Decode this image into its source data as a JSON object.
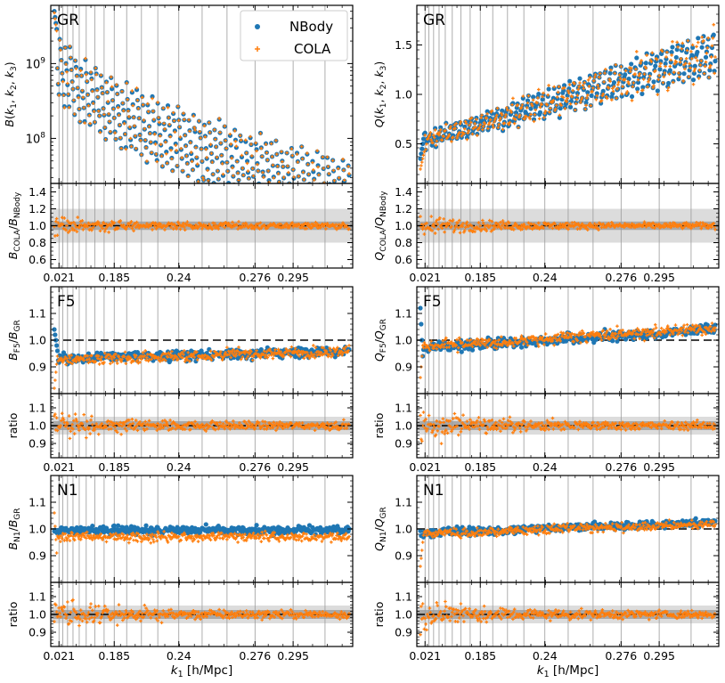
{
  "legend": {
    "nbody": "NBody",
    "cola": "COLA"
  },
  "colors": {
    "nbody": "#1f77b4",
    "cola": "#ff7f0e",
    "band_inner": "#a9a9a9",
    "band_outer": "#dcdcdc",
    "vline": "#9a9a9a"
  },
  "x_ticks": [
    "0.021",
    "0.185",
    "0.24",
    "0.276",
    "0.295"
  ],
  "xlabel_base": "k",
  "xlabel_sub": "1",
  "xlabel_unit": "[h/Mpc]",
  "num_triangles": 380,
  "chart_data": [
    {
      "id": "gr-bispectrum",
      "type": "scatter",
      "col": 0,
      "row": 0,
      "title": "GR",
      "ylabel": "B(k1, k2, k3)",
      "yscale": "log",
      "ylim": [
        25000000,
        6000000000
      ],
      "yticks": [
        "10^8",
        "10^9"
      ],
      "series": [
        {
          "name": "NBody"
        },
        {
          "name": "COLA"
        }
      ],
      "trend": "decreasing from ~6e9 to ~4e7 with sawtooth"
    },
    {
      "id": "gr-bispectrum-ratio",
      "type": "scatter",
      "col": 0,
      "row": 1,
      "ylabel": "B_COLA/B_NBody",
      "ylim": [
        0.5,
        1.5
      ],
      "yticks": [
        "0.6",
        "0.8",
        "1.0",
        "1.2",
        "1.4"
      ],
      "bands": [
        0.05,
        0.2
      ]
    },
    {
      "id": "gr-reduced",
      "type": "scatter",
      "col": 1,
      "row": 0,
      "title": "GR",
      "ylabel": "Q(k1, k2, k3)",
      "ylim": [
        0.1,
        1.9
      ],
      "yticks": [
        "0.5",
        "1.0",
        "1.5"
      ],
      "trend": "increasing from ~0.5 to ~1.5 with sawtooth"
    },
    {
      "id": "gr-reduced-ratio",
      "type": "scatter",
      "col": 1,
      "row": 1,
      "ylabel": "Q_COLA/Q_NBody",
      "ylim": [
        0.5,
        1.5
      ],
      "yticks": [
        "0.6",
        "0.8",
        "1.0",
        "1.2",
        "1.4"
      ],
      "bands": [
        0.05,
        0.2
      ]
    },
    {
      "id": "f5-bispectrum",
      "type": "scatter",
      "col": 0,
      "row": 2,
      "title": "F5",
      "ylabel": "B_F5/B_GR",
      "ylim": [
        0.8,
        1.2
      ],
      "yticks": [
        "0.9",
        "1.0",
        "1.1"
      ],
      "trend": "~0.93 rising to ~0.96"
    },
    {
      "id": "f5-bispectrum-ratio",
      "type": "scatter",
      "col": 0,
      "row": 3,
      "ylabel": "ratio",
      "ylim": [
        0.82,
        1.18
      ],
      "yticks": [
        "0.9",
        "1.0",
        "1.1"
      ],
      "bands": [
        0.025,
        0.05
      ]
    },
    {
      "id": "f5-reduced",
      "type": "scatter",
      "col": 1,
      "row": 2,
      "title": "F5",
      "ylabel": "Q_F5/Q_GR",
      "ylim": [
        0.8,
        1.2
      ],
      "yticks": [
        "0.9",
        "1.0",
        "1.1"
      ],
      "trend": "~0.97 rising to ~1.04"
    },
    {
      "id": "f5-reduced-ratio",
      "type": "scatter",
      "col": 1,
      "row": 3,
      "ylabel": "ratio",
      "ylim": [
        0.82,
        1.18
      ],
      "yticks": [
        "0.9",
        "1.0",
        "1.1"
      ],
      "bands": [
        0.025,
        0.05
      ]
    },
    {
      "id": "n1-bispectrum",
      "type": "scatter",
      "col": 0,
      "row": 4,
      "title": "N1",
      "ylabel": "B_N1/B_GR",
      "ylim": [
        0.8,
        1.2
      ],
      "yticks": [
        "0.9",
        "1.0",
        "1.1"
      ],
      "trend": "NBody ~1.0, COLA ~0.97"
    },
    {
      "id": "n1-bispectrum-ratio",
      "type": "scatter",
      "col": 0,
      "row": 5,
      "ylabel": "ratio",
      "ylim": [
        0.82,
        1.18
      ],
      "yticks": [
        "0.9",
        "1.0",
        "1.1"
      ],
      "bands": [
        0.025,
        0.05
      ]
    },
    {
      "id": "n1-reduced",
      "type": "scatter",
      "col": 1,
      "row": 4,
      "title": "N1",
      "ylabel": "Q_N1/Q_GR",
      "ylim": [
        0.8,
        1.2
      ],
      "yticks": [
        "0.9",
        "1.0",
        "1.1"
      ],
      "trend": "~0.98 rising to ~1.02"
    },
    {
      "id": "n1-reduced-ratio",
      "type": "scatter",
      "col": 1,
      "row": 5,
      "ylabel": "ratio",
      "ylim": [
        0.82,
        1.18
      ],
      "yticks": [
        "0.9",
        "1.0",
        "1.1"
      ],
      "bands": [
        0.025,
        0.05
      ]
    }
  ]
}
